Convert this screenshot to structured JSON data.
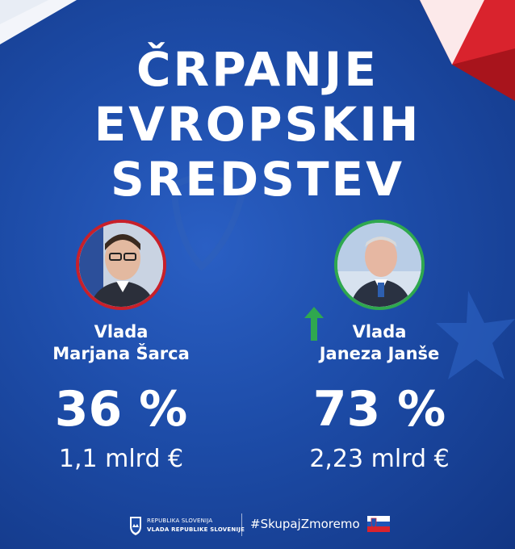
{
  "title": {
    "line1": "ČRPANJE",
    "line2": "EVROPSKIH",
    "line3": "SREDSTEV"
  },
  "left": {
    "label_line1": "Vlada",
    "label_line2": "Marjana Šarca",
    "percent": "36 %",
    "percent_value": 36,
    "amount": "1,1 mlrd €",
    "ring_color": "#c8202a"
  },
  "right": {
    "label_line1": "Vlada",
    "label_line2": "Janeza Janše",
    "percent": "73 %",
    "percent_value": 73,
    "amount": "2,23 mlrd €",
    "ring_color": "#2fa84f",
    "trend_icon": "arrow-up-icon"
  },
  "footer": {
    "org_line1": "REPUBLIKA SLOVENIJA",
    "org_line2": "VLADA REPUBLIKE SLOVENIJE",
    "hashtag": "#SkupajZmoremo"
  },
  "colors": {
    "background": "#1d4ca8",
    "accent_red": "#c8202a",
    "accent_green": "#2fa84f",
    "text": "#ffffff"
  }
}
